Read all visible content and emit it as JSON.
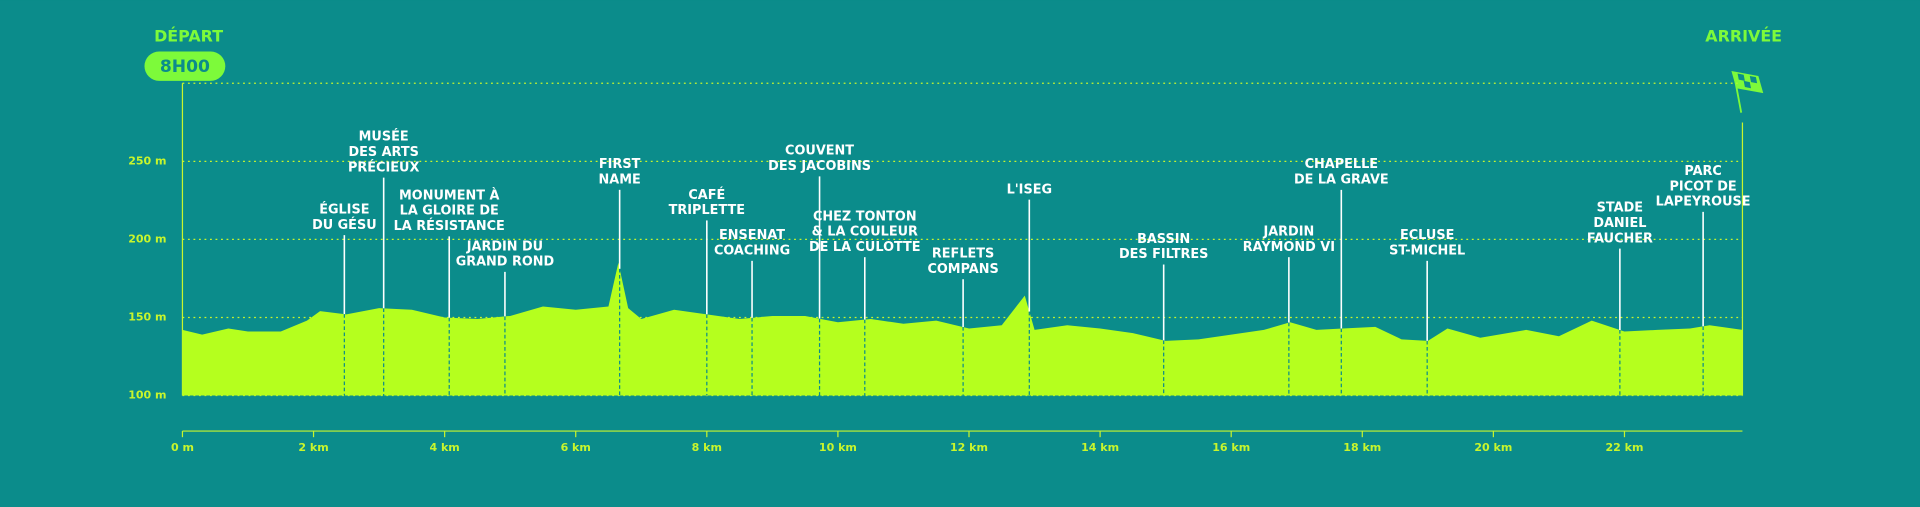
{
  "chart_data": {
    "type": "area",
    "start_label": "DÉPART",
    "start_time": "8H00",
    "end_label": "ARRIVÉE",
    "x": [
      0,
      0.3,
      0.7,
      1.0,
      1.5,
      1.9,
      2.1,
      2.5,
      3.0,
      3.5,
      4.0,
      4.5,
      5.0,
      5.5,
      6.0,
      6.5,
      6.65,
      6.8,
      7.0,
      7.5,
      8.0,
      8.5,
      9.0,
      9.5,
      10.0,
      10.5,
      11.0,
      11.5,
      12.0,
      12.5,
      12.85,
      13.0,
      13.5,
      14.0,
      14.5,
      15.0,
      15.5,
      16.0,
      16.5,
      16.9,
      17.3,
      17.7,
      18.2,
      18.6,
      19.0,
      19.3,
      19.8,
      20.5,
      21.0,
      21.5,
      22.0,
      22.5,
      23.0,
      23.3,
      23.8
    ],
    "values": [
      142,
      139,
      143,
      141,
      141,
      148,
      154,
      152,
      156,
      155,
      150,
      149,
      151,
      157,
      155,
      157,
      185,
      156,
      149,
      155,
      152,
      149,
      151,
      151,
      147,
      149,
      146,
      148,
      143,
      145,
      164,
      142,
      145,
      143,
      140,
      135,
      136,
      139,
      142,
      147,
      142,
      143,
      144,
      136,
      135,
      143,
      137,
      142,
      138,
      148,
      141,
      142,
      143,
      145,
      142
    ],
    "color": "#b5ff1e",
    "xlim": [
      0,
      23.8
    ],
    "ylim": [
      100,
      300
    ],
    "xticks": [
      {
        "value": 0,
        "label": "0 m"
      },
      {
        "value": 2,
        "label": "2 km"
      },
      {
        "value": 4,
        "label": "4 km"
      },
      {
        "value": 6,
        "label": "6 km"
      },
      {
        "value": 8,
        "label": "8 km"
      },
      {
        "value": 10,
        "label": "10 km"
      },
      {
        "value": 12,
        "label": "12 km"
      },
      {
        "value": 14,
        "label": "14 km"
      },
      {
        "value": 16,
        "label": "16 km"
      },
      {
        "value": 18,
        "label": "18 km"
      },
      {
        "value": 20,
        "label": "20 km"
      },
      {
        "value": 22,
        "label": "22 km"
      }
    ],
    "yticks": [
      {
        "value": 100,
        "label": "100 m"
      },
      {
        "value": 150,
        "label": "150 m"
      },
      {
        "value": 200,
        "label": "200 m"
      },
      {
        "value": 250,
        "label": "250 m"
      }
    ],
    "grid": true,
    "landmarks": [
      {
        "km": 2.47,
        "label": [
          "ÉGLISE",
          "DU GÉSU"
        ]
      },
      {
        "km": 3.07,
        "label": [
          "MUSÉE",
          "DES ARTS",
          "PRÉCIEUX"
        ]
      },
      {
        "km": 4.07,
        "label": [
          "MONUMENT À",
          "LA GLOIRE DE",
          "LA RÉSISTANCE"
        ]
      },
      {
        "km": 4.92,
        "label": [
          "JARDIN DU",
          "GRAND ROND"
        ]
      },
      {
        "km": 6.67,
        "label": [
          "FIRST",
          "NAME"
        ]
      },
      {
        "km": 8.0,
        "label": [
          "CAFÉ",
          "TRIPLETTE"
        ]
      },
      {
        "km": 8.69,
        "label": [
          "ENSENAT",
          "COACHING"
        ]
      },
      {
        "km": 9.72,
        "label": [
          "COUVENT",
          "DES JACOBINS"
        ]
      },
      {
        "km": 10.41,
        "label": [
          "CHEZ TONTON",
          "& LA COULEUR",
          "DE LA CULOTTE"
        ]
      },
      {
        "km": 11.91,
        "label": [
          "REFLETS",
          "COMPANS"
        ]
      },
      {
        "km": 12.92,
        "label": [
          "L'ISEG"
        ]
      },
      {
        "km": 14.97,
        "label": [
          "BASSIN",
          "DES FILTRES"
        ]
      },
      {
        "km": 16.88,
        "label": [
          "JARDIN",
          "RAYMOND VI"
        ]
      },
      {
        "km": 17.68,
        "label": [
          "CHAPELLE",
          "DE LA GRAVE"
        ]
      },
      {
        "km": 18.99,
        "label": [
          "ECLUSE",
          "ST-MICHEL"
        ]
      },
      {
        "km": 21.93,
        "label": [
          "STADE",
          "DANIEL",
          "FAUCHER"
        ]
      },
      {
        "km": 23.2,
        "label": [
          "PARC",
          "PICOT DE",
          "LAPEYROUSE"
        ]
      }
    ]
  }
}
